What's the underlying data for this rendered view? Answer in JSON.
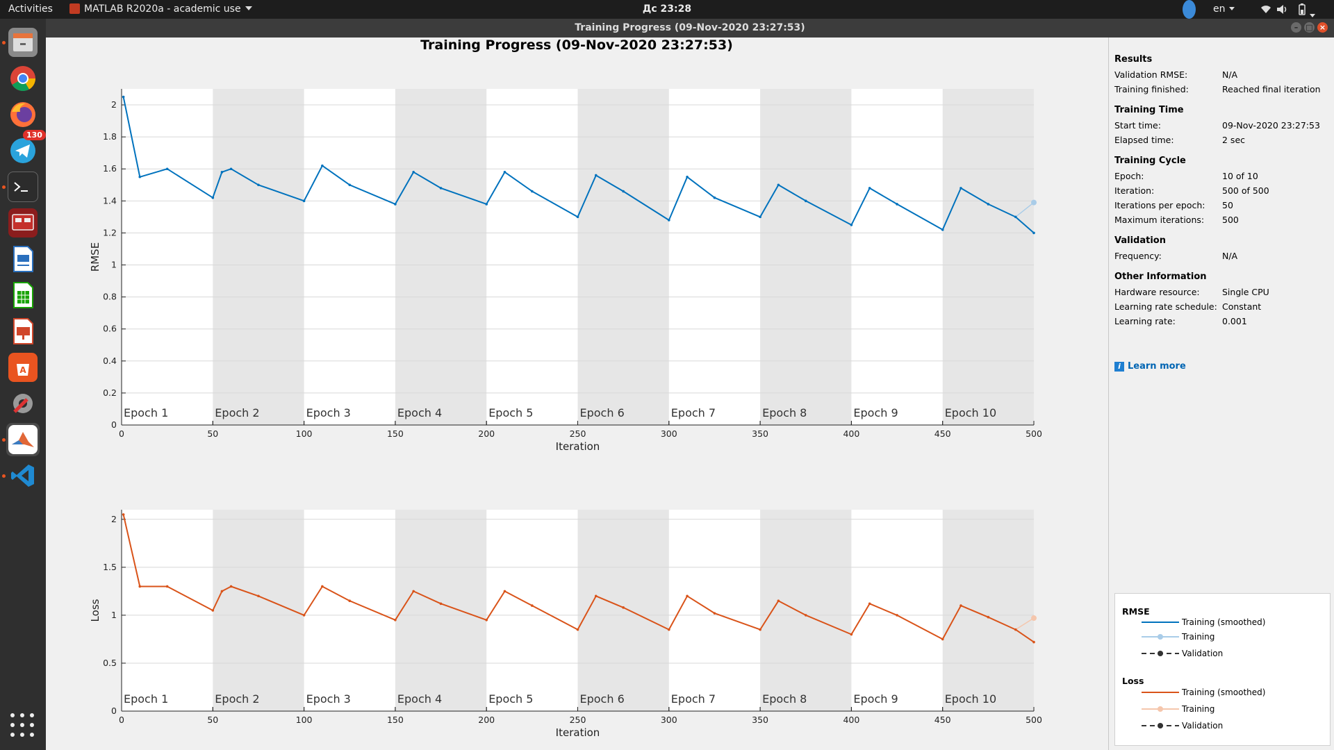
{
  "topbar": {
    "activities": "Activities",
    "app_name": "MATLAB R2020a - academic use",
    "clock": "Дс 23:28",
    "lang": "en"
  },
  "dock": {
    "items": [
      {
        "name": "files",
        "icon": "file-cabinet-icon"
      },
      {
        "name": "chrome",
        "icon": "chrome-icon"
      },
      {
        "name": "firefox",
        "icon": "firefox-icon"
      },
      {
        "name": "telegram",
        "icon": "telegram-icon",
        "badge": "130"
      },
      {
        "name": "terminal",
        "icon": "terminal-icon"
      },
      {
        "name": "remote-desktop",
        "icon": "remote-desktop-icon"
      },
      {
        "name": "writer",
        "icon": "libreoffice-writer-icon"
      },
      {
        "name": "calc",
        "icon": "libreoffice-calc-icon"
      },
      {
        "name": "impress",
        "icon": "libreoffice-impress-icon"
      },
      {
        "name": "software",
        "icon": "ubuntu-software-icon"
      },
      {
        "name": "settings",
        "icon": "settings-icon"
      },
      {
        "name": "matlab",
        "icon": "matlab-icon"
      },
      {
        "name": "vscode",
        "icon": "vscode-icon"
      }
    ]
  },
  "window": {
    "title": "Training Progress (09-Nov-2020 23:27:53)"
  },
  "figure": {
    "title": "Training Progress (09-Nov-2020 23:27:53)"
  },
  "chart_data": [
    {
      "type": "line",
      "ylabel": "RMSE",
      "xlabel": "Iteration",
      "xlim": [
        0,
        500
      ],
      "ylim": [
        0,
        2.1
      ],
      "xticks": [
        0,
        50,
        100,
        150,
        200,
        250,
        300,
        350,
        400,
        450,
        500
      ],
      "yticks": [
        0,
        0.2,
        0.4,
        0.6,
        0.8,
        1,
        1.2,
        1.4,
        1.6,
        1.8,
        2
      ],
      "epoch_labels": [
        "Epoch 1",
        "Epoch 2",
        "Epoch 3",
        "Epoch 4",
        "Epoch 5",
        "Epoch 6",
        "Epoch 7",
        "Epoch 8",
        "Epoch 9",
        "Epoch 10"
      ],
      "series": [
        {
          "name": "Training (smoothed)",
          "color": "#0072bd",
          "x": [
            1,
            10,
            25,
            50,
            55,
            60,
            75,
            100,
            110,
            125,
            150,
            160,
            175,
            200,
            210,
            225,
            250,
            260,
            275,
            300,
            310,
            325,
            350,
            360,
            375,
            400,
            410,
            425,
            450,
            460,
            475,
            490,
            500
          ],
          "values": [
            2.05,
            1.55,
            1.6,
            1.42,
            1.58,
            1.6,
            1.5,
            1.4,
            1.62,
            1.5,
            1.38,
            1.58,
            1.48,
            1.38,
            1.58,
            1.46,
            1.3,
            1.56,
            1.46,
            1.28,
            1.55,
            1.42,
            1.3,
            1.5,
            1.4,
            1.25,
            1.48,
            1.38,
            1.22,
            1.48,
            1.38,
            1.3,
            1.2
          ]
        },
        {
          "name": "Training",
          "color": "#a9cce8",
          "x": [
            1,
            10,
            25,
            50,
            55,
            60,
            75,
            100,
            110,
            125,
            150,
            160,
            175,
            200,
            210,
            225,
            250,
            260,
            275,
            300,
            310,
            325,
            350,
            360,
            375,
            400,
            410,
            425,
            450,
            460,
            475,
            490,
            500
          ],
          "values": [
            2.05,
            1.55,
            1.6,
            1.42,
            1.58,
            1.6,
            1.5,
            1.4,
            1.62,
            1.5,
            1.38,
            1.58,
            1.48,
            1.38,
            1.58,
            1.46,
            1.3,
            1.56,
            1.46,
            1.28,
            1.55,
            1.42,
            1.3,
            1.5,
            1.4,
            1.25,
            1.48,
            1.38,
            1.22,
            1.48,
            1.38,
            1.3,
            1.39
          ]
        }
      ]
    },
    {
      "type": "line",
      "ylabel": "Loss",
      "xlabel": "Iteration",
      "xlim": [
        0,
        500
      ],
      "ylim": [
        0,
        2.1
      ],
      "xticks": [
        0,
        50,
        100,
        150,
        200,
        250,
        300,
        350,
        400,
        450,
        500
      ],
      "yticks": [
        0,
        0.5,
        1,
        1.5,
        2
      ],
      "epoch_labels": [
        "Epoch 1",
        "Epoch 2",
        "Epoch 3",
        "Epoch 4",
        "Epoch 5",
        "Epoch 6",
        "Epoch 7",
        "Epoch 8",
        "Epoch 9",
        "Epoch 10"
      ],
      "series": [
        {
          "name": "Training (smoothed)",
          "color": "#d95319",
          "x": [
            1,
            10,
            25,
            50,
            55,
            60,
            75,
            100,
            110,
            125,
            150,
            160,
            175,
            200,
            210,
            225,
            250,
            260,
            275,
            300,
            310,
            325,
            350,
            360,
            375,
            400,
            410,
            425,
            450,
            460,
            475,
            490,
            500
          ],
          "values": [
            2.05,
            1.3,
            1.3,
            1.05,
            1.25,
            1.3,
            1.2,
            1.0,
            1.3,
            1.15,
            0.95,
            1.25,
            1.12,
            0.95,
            1.25,
            1.1,
            0.85,
            1.2,
            1.08,
            0.85,
            1.2,
            1.02,
            0.85,
            1.15,
            1.0,
            0.8,
            1.12,
            1.0,
            0.75,
            1.1,
            0.98,
            0.85,
            0.72
          ]
        },
        {
          "name": "Training",
          "color": "#f5c6ac",
          "x": [
            1,
            10,
            25,
            50,
            55,
            60,
            75,
            100,
            110,
            125,
            150,
            160,
            175,
            200,
            210,
            225,
            250,
            260,
            275,
            300,
            310,
            325,
            350,
            360,
            375,
            400,
            410,
            425,
            450,
            460,
            475,
            490,
            500
          ],
          "values": [
            2.05,
            1.3,
            1.3,
            1.05,
            1.25,
            1.3,
            1.2,
            1.0,
            1.3,
            1.15,
            0.95,
            1.25,
            1.12,
            0.95,
            1.25,
            1.1,
            0.85,
            1.2,
            1.08,
            0.85,
            1.2,
            1.02,
            0.85,
            1.15,
            1.0,
            0.8,
            1.12,
            1.0,
            0.75,
            1.1,
            0.98,
            0.85,
            0.97
          ]
        }
      ]
    }
  ],
  "panel": {
    "results": {
      "head": "Results",
      "rows": [
        {
          "k": "Validation RMSE:",
          "v": "N/A"
        },
        {
          "k": "Training finished:",
          "v": "Reached final iteration"
        }
      ]
    },
    "time": {
      "head": "Training Time",
      "rows": [
        {
          "k": "Start time:",
          "v": "09-Nov-2020 23:27:53"
        },
        {
          "k": "Elapsed time:",
          "v": "2 sec"
        }
      ]
    },
    "cycle": {
      "head": "Training Cycle",
      "rows": [
        {
          "k": "Epoch:",
          "v": "10 of 10"
        },
        {
          "k": "Iteration:",
          "v": "500 of 500"
        },
        {
          "k": "Iterations per epoch:",
          "v": "50"
        },
        {
          "k": "Maximum iterations:",
          "v": "500"
        }
      ]
    },
    "validation": {
      "head": "Validation",
      "rows": [
        {
          "k": "Frequency:",
          "v": "N/A"
        }
      ]
    },
    "other": {
      "head": "Other Information",
      "rows": [
        {
          "k": "Hardware resource:",
          "v": "Single CPU"
        },
        {
          "k": "Learning rate schedule:",
          "v": "Constant"
        },
        {
          "k": "Learning rate:",
          "v": "0.001"
        }
      ]
    },
    "learn_more": "Learn more"
  },
  "legend": {
    "rmse_head": "RMSE",
    "loss_head": "Loss",
    "training_smoothed": "Training (smoothed)",
    "training": "Training",
    "validation": "Validation",
    "colors": {
      "rmse_smooth": "#0072bd",
      "rmse_raw": "#a9cce8",
      "loss_smooth": "#d95319",
      "loss_raw": "#f5c6ac",
      "validation": "#333333"
    }
  }
}
